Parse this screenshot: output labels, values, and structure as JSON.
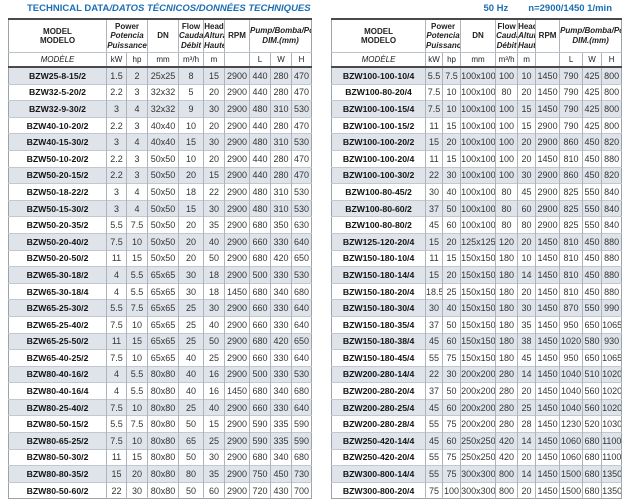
{
  "page": {
    "title_main": "TECHNICAL DATA",
    "title_rest": "/DATOS TÉCNICOS/DONNÉES TECHNIQUES",
    "frequency": "50 Hz",
    "speed": "n=2900/1450 1/min"
  },
  "colors": {
    "accent_blue": "#1b6fb5",
    "stripe": "#dfe4ea",
    "dark_rule": "#4a4a4a"
  },
  "table_header": {
    "model": {
      "en": "MODEL",
      "es": "MODELO",
      "fr": "MODÈLE"
    },
    "power": {
      "en": "Power",
      "es": "Potencia",
      "fr": "Puissance"
    },
    "power_units": {
      "kw": "kW",
      "hp": "hp"
    },
    "dn": {
      "label": "DN",
      "unit": "mm"
    },
    "flow": {
      "en": "Flow",
      "es": "Caudal",
      "fr": "Débit",
      "unit": "m³/h"
    },
    "head": {
      "en": "Head",
      "es": "Altura",
      "fr": "Hauteur",
      "unit": "m"
    },
    "rpm": {
      "label": "RPM",
      "unit": ""
    },
    "dim": {
      "line1": "Pump/Bomba/Pompe",
      "line2": "DIM.(mm)",
      "l": "L",
      "w": "W",
      "h": "H"
    }
  },
  "tables": {
    "left": {
      "rows": [
        [
          "BZW25-8-15/2",
          "1.5",
          "2",
          "25x25",
          "8",
          "15",
          "2900",
          "440",
          "280",
          "470"
        ],
        [
          "BZW32-5-20/2",
          "2.2",
          "3",
          "32x32",
          "5",
          "20",
          "2900",
          "440",
          "280",
          "470"
        ],
        [
          "BZW32-9-30/2",
          "3",
          "4",
          "32x32",
          "9",
          "30",
          "2900",
          "480",
          "310",
          "530"
        ],
        [
          "BZW40-10-20/2",
          "2.2",
          "3",
          "40x40",
          "10",
          "20",
          "2900",
          "440",
          "280",
          "470"
        ],
        [
          "BZW40-15-30/2",
          "3",
          "4",
          "40x40",
          "15",
          "30",
          "2900",
          "480",
          "310",
          "530"
        ],
        [
          "BZW50-10-20/2",
          "2.2",
          "3",
          "50x50",
          "10",
          "20",
          "2900",
          "440",
          "280",
          "470"
        ],
        [
          "BZW50-20-15/2",
          "2.2",
          "3",
          "50x50",
          "20",
          "15",
          "2900",
          "440",
          "280",
          "470"
        ],
        [
          "BZW50-18-22/2",
          "3",
          "4",
          "50x50",
          "18",
          "22",
          "2900",
          "480",
          "310",
          "530"
        ],
        [
          "BZW50-15-30/2",
          "3",
          "4",
          "50x50",
          "15",
          "30",
          "2900",
          "480",
          "310",
          "530"
        ],
        [
          "BZW50-20-35/2",
          "5.5",
          "7.5",
          "50x50",
          "20",
          "35",
          "2900",
          "680",
          "350",
          "630"
        ],
        [
          "BZW50-20-40/2",
          "7.5",
          "10",
          "50x50",
          "20",
          "40",
          "2900",
          "660",
          "330",
          "640"
        ],
        [
          "BZW50-20-50/2",
          "11",
          "15",
          "50x50",
          "20",
          "50",
          "2900",
          "680",
          "420",
          "650"
        ],
        [
          "BZW65-30-18/2",
          "4",
          "5.5",
          "65x65",
          "30",
          "18",
          "2900",
          "500",
          "330",
          "530"
        ],
        [
          "BZW65-30-18/4",
          "4",
          "5.5",
          "65x65",
          "30",
          "18",
          "1450",
          "680",
          "340",
          "680"
        ],
        [
          "BZW65-25-30/2",
          "5.5",
          "7.5",
          "65x65",
          "25",
          "30",
          "2900",
          "660",
          "330",
          "640"
        ],
        [
          "BZW65-25-40/2",
          "7.5",
          "10",
          "65x65",
          "25",
          "40",
          "2900",
          "660",
          "330",
          "640"
        ],
        [
          "BZW65-25-50/2",
          "11",
          "15",
          "65x65",
          "25",
          "50",
          "2900",
          "680",
          "420",
          "650"
        ],
        [
          "BZW65-40-25/2",
          "7.5",
          "10",
          "65x65",
          "40",
          "25",
          "2900",
          "660",
          "330",
          "640"
        ],
        [
          "BZW80-40-16/2",
          "4",
          "5.5",
          "80x80",
          "40",
          "16",
          "2900",
          "500",
          "330",
          "530"
        ],
        [
          "BZW80-40-16/4",
          "4",
          "5.5",
          "80x80",
          "40",
          "16",
          "1450",
          "680",
          "340",
          "680"
        ],
        [
          "BZW80-25-40/2",
          "7.5",
          "10",
          "80x80",
          "25",
          "40",
          "2900",
          "660",
          "330",
          "640"
        ],
        [
          "BZW80-50-15/2",
          "5.5",
          "7.5",
          "80x80",
          "50",
          "15",
          "2900",
          "590",
          "335",
          "590"
        ],
        [
          "BZW80-65-25/2",
          "7.5",
          "10",
          "80x80",
          "65",
          "25",
          "2900",
          "590",
          "335",
          "590"
        ],
        [
          "BZW80-50-30/2",
          "11",
          "15",
          "80x80",
          "50",
          "30",
          "2900",
          "680",
          "340",
          "680"
        ],
        [
          "BZW80-80-35/2",
          "15",
          "20",
          "80x80",
          "80",
          "35",
          "2900",
          "750",
          "450",
          "730"
        ],
        [
          "BZW80-50-60/2",
          "22",
          "30",
          "80x80",
          "50",
          "60",
          "2900",
          "720",
          "430",
          "700"
        ]
      ]
    },
    "right": {
      "rows": [
        [
          "BZW100-100-10/4",
          "5.5",
          "7.5",
          "100x100",
          "100",
          "10",
          "1450",
          "790",
          "425",
          "800"
        ],
        [
          "BZW100-80-20/4",
          "7.5",
          "10",
          "100x100",
          "80",
          "20",
          "1450",
          "790",
          "425",
          "800"
        ],
        [
          "BZW100-100-15/4",
          "7.5",
          "10",
          "100x100",
          "100",
          "15",
          "1450",
          "790",
          "425",
          "800"
        ],
        [
          "BZW100-100-15/2",
          "11",
          "15",
          "100x100",
          "100",
          "15",
          "2900",
          "790",
          "425",
          "800"
        ],
        [
          "BZW100-100-20/2",
          "15",
          "20",
          "100x100",
          "100",
          "20",
          "2900",
          "860",
          "450",
          "820"
        ],
        [
          "BZW100-100-20/4",
          "11",
          "15",
          "100x100",
          "100",
          "20",
          "1450",
          "810",
          "450",
          "880"
        ],
        [
          "BZW100-100-30/2",
          "22",
          "30",
          "100x100",
          "100",
          "30",
          "2900",
          "860",
          "450",
          "820"
        ],
        [
          "BZW100-80-45/2",
          "30",
          "40",
          "100x100",
          "80",
          "45",
          "2900",
          "825",
          "550",
          "840"
        ],
        [
          "BZW100-80-60/2",
          "37",
          "50",
          "100x100",
          "80",
          "60",
          "2900",
          "825",
          "550",
          "840"
        ],
        [
          "BZW100-80-80/2",
          "45",
          "60",
          "100x100",
          "80",
          "80",
          "2900",
          "825",
          "550",
          "840"
        ],
        [
          "BZW125-120-20/4",
          "15",
          "20",
          "125x125",
          "120",
          "20",
          "1450",
          "810",
          "450",
          "880"
        ],
        [
          "BZW150-180-10/4",
          "11",
          "15",
          "150x150",
          "180",
          "10",
          "1450",
          "810",
          "450",
          "880"
        ],
        [
          "BZW150-180-14/4",
          "15",
          "20",
          "150x150",
          "180",
          "14",
          "1450",
          "810",
          "450",
          "880"
        ],
        [
          "BZW150-180-20/4",
          "18.5",
          "25",
          "150x150",
          "180",
          "20",
          "1450",
          "810",
          "450",
          "880"
        ],
        [
          "BZW150-180-30/4",
          "30",
          "40",
          "150x150",
          "180",
          "30",
          "1450",
          "870",
          "550",
          "990"
        ],
        [
          "BZW150-180-35/4",
          "37",
          "50",
          "150x150",
          "180",
          "35",
          "1450",
          "950",
          "650",
          "1065"
        ],
        [
          "BZW150-180-38/4",
          "45",
          "60",
          "150x150",
          "180",
          "38",
          "1450",
          "1020",
          "580",
          "930"
        ],
        [
          "BZW150-180-45/4",
          "55",
          "75",
          "150x150",
          "180",
          "45",
          "1450",
          "950",
          "650",
          "1065"
        ],
        [
          "BZW200-280-14/4",
          "22",
          "30",
          "200x200",
          "280",
          "14",
          "1450",
          "1040",
          "510",
          "1020"
        ],
        [
          "BZW200-280-20/4",
          "37",
          "50",
          "200x200",
          "280",
          "20",
          "1450",
          "1040",
          "560",
          "1020"
        ],
        [
          "BZW200-280-25/4",
          "45",
          "60",
          "200x200",
          "280",
          "25",
          "1450",
          "1040",
          "560",
          "1020"
        ],
        [
          "BZW200-280-28/4",
          "55",
          "75",
          "200x200",
          "280",
          "28",
          "1450",
          "1230",
          "520",
          "1030"
        ],
        [
          "BZW250-420-14/4",
          "45",
          "60",
          "250x250",
          "420",
          "14",
          "1450",
          "1060",
          "680",
          "1100"
        ],
        [
          "BZW250-420-20/4",
          "55",
          "75",
          "250x250",
          "420",
          "20",
          "1450",
          "1060",
          "680",
          "1100"
        ],
        [
          "BZW300-800-14/4",
          "55",
          "75",
          "300x300",
          "800",
          "14",
          "1450",
          "1500",
          "680",
          "1350"
        ],
        [
          "BZW300-800-20/4",
          "75",
          "100",
          "300x300",
          "800",
          "20",
          "1450",
          "1500",
          "680",
          "1350"
        ]
      ]
    }
  }
}
